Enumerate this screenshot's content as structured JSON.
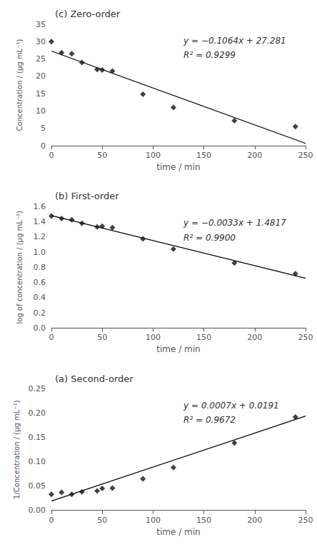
{
  "chart_data": [
    {
      "type": "scatter",
      "title": "(c) Zero-order",
      "xlabel": "time / min",
      "ylabel": "Concentration / (μg mL⁻¹)",
      "xlim": [
        0,
        250
      ],
      "ylim": [
        0,
        35
      ],
      "xticks": [
        0,
        50,
        100,
        150,
        200,
        250
      ],
      "yticks": [
        0,
        5,
        10,
        15,
        20,
        25,
        30,
        35
      ],
      "grid": false,
      "annotations": [
        "y = −0.1064x + 27.281",
        "R² = 0.9299"
      ],
      "series": [
        {
          "type": "line",
          "color": "#000000",
          "x": [
            0,
            250
          ],
          "values": [
            27.281,
            0.681
          ]
        },
        {
          "type": "scatter",
          "color": "#111111",
          "marker": "diamond",
          "x": [
            0,
            10,
            20,
            30,
            45,
            50,
            60,
            90,
            120,
            180,
            240
          ],
          "values": [
            30,
            26.8,
            26.5,
            24,
            22,
            21.8,
            21.5,
            14.8,
            11,
            7.2,
            5.5
          ]
        }
      ]
    },
    {
      "type": "scatter",
      "title": "(b) First-order",
      "xlabel": "time / min",
      "ylabel": "log of concentration / (μg mL⁻¹)",
      "xlim": [
        0,
        250
      ],
      "ylim": [
        0.0,
        1.6
      ],
      "xticks": [
        0,
        50,
        100,
        150,
        200,
        250
      ],
      "yticks": [
        {
          "value": 0,
          "label": "0.0"
        },
        0.2,
        0.4,
        0.6,
        0.8,
        {
          "value": 1,
          "label": "1.0"
        },
        1.2,
        1.4,
        1.6
      ],
      "grid": false,
      "annotations": [
        "y = −0.0033x + 1.4817",
        "R² = 0.9900"
      ],
      "series": [
        {
          "type": "line",
          "color": "#000000",
          "x": [
            0,
            250
          ],
          "values": [
            1.4817,
            0.6567
          ]
        },
        {
          "type": "scatter",
          "color": "#111111",
          "marker": "diamond",
          "x": [
            0,
            10,
            20,
            30,
            45,
            50,
            60,
            90,
            120,
            180,
            240
          ],
          "values": [
            1.477,
            1.444,
            1.427,
            1.38,
            1.332,
            1.342,
            1.322,
            1.176,
            1.041,
            0.857,
            0.716
          ]
        }
      ]
    },
    {
      "type": "scatter",
      "title": "(a) Second-order",
      "xlabel": "time / min",
      "ylabel": "1/Concentration / (μg mL⁻¹)",
      "xlim": [
        0,
        250
      ],
      "ylim": [
        0,
        0.25
      ],
      "xticks": [
        0,
        50,
        100,
        150,
        200,
        250
      ],
      "yticks": [
        {
          "value": 0,
          "label": "0.00"
        },
        0.05,
        {
          "value": 0.1,
          "label": "0.10"
        },
        0.15,
        {
          "value": 0.2,
          "label": "0.20"
        },
        0.25
      ],
      "grid": false,
      "annotations": [
        "y = 0.0007x + 0.0191",
        "R² = 0.9672"
      ],
      "series": [
        {
          "type": "line",
          "color": "#000000",
          "x": [
            0,
            250
          ],
          "values": [
            0.0191,
            0.1941
          ]
        },
        {
          "type": "scatter",
          "color": "#111111",
          "marker": "diamond",
          "x": [
            0,
            10,
            20,
            30,
            45,
            50,
            60,
            90,
            120,
            180,
            240
          ],
          "values": [
            0.033,
            0.037,
            0.033,
            0.038,
            0.04,
            0.045,
            0.046,
            0.065,
            0.088,
            0.139,
            0.192
          ]
        }
      ]
    }
  ]
}
